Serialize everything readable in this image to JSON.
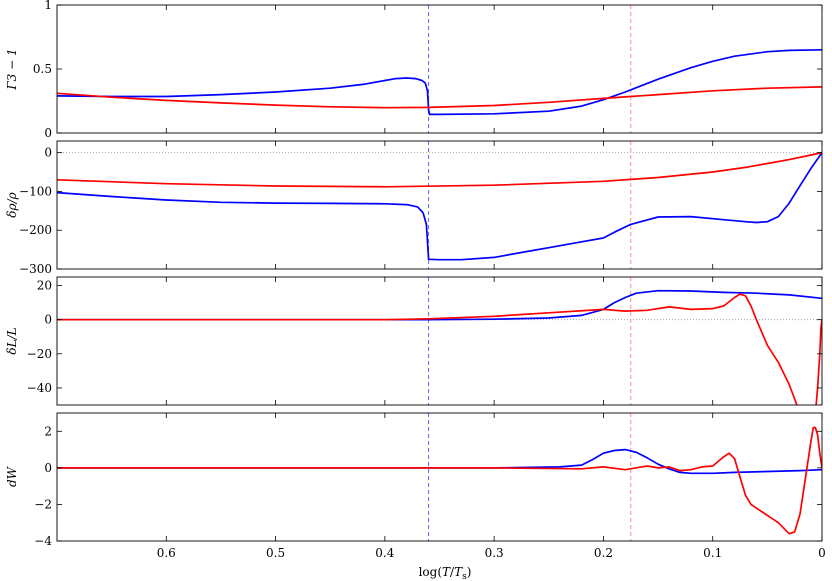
{
  "chart_data": {
    "type": "line",
    "xlabel": "log(T/T_s)",
    "xlim": [
      0.7,
      0.0
    ],
    "x_ticks": [
      0.6,
      0.5,
      0.4,
      0.3,
      0.2,
      0.1,
      0.0
    ],
    "x_tick_labels": [
      "0.6",
      "0.5",
      "0.4",
      "0.3",
      "0.2",
      "0.1",
      "0"
    ],
    "colors": {
      "blue": "#0000ff",
      "red": "#ff0000"
    },
    "vlines": [
      {
        "x": 0.36,
        "color": "#6666ff",
        "style": "dashed"
      },
      {
        "x": 0.175,
        "color": "#ff8888",
        "style": "dashed"
      }
    ],
    "panels": [
      {
        "ylabel": "Γ3 − 1",
        "ylim": [
          0,
          1
        ],
        "yticks": [
          0,
          0.5,
          1
        ],
        "ytick_labels": [
          "0",
          "0.5",
          "1"
        ],
        "zero_line": false,
        "series": [
          {
            "color": "blue",
            "x": [
              0.7,
              0.65,
              0.6,
              0.55,
              0.5,
              0.45,
              0.42,
              0.4,
              0.39,
              0.38,
              0.372,
              0.366,
              0.363,
              0.361,
              0.36,
              0.359,
              0.35,
              0.3,
              0.25,
              0.22,
              0.2,
              0.18,
              0.15,
              0.12,
              0.1,
              0.08,
              0.05,
              0.03,
              0.0
            ],
            "y": [
              0.29,
              0.285,
              0.285,
              0.3,
              0.32,
              0.35,
              0.38,
              0.41,
              0.425,
              0.43,
              0.425,
              0.41,
              0.39,
              0.33,
              0.18,
              0.145,
              0.145,
              0.15,
              0.17,
              0.21,
              0.26,
              0.32,
              0.42,
              0.51,
              0.56,
              0.6,
              0.635,
              0.645,
              0.65
            ]
          },
          {
            "color": "red",
            "x": [
              0.7,
              0.65,
              0.6,
              0.55,
              0.5,
              0.45,
              0.4,
              0.36,
              0.3,
              0.25,
              0.2,
              0.15,
              0.1,
              0.05,
              0.0
            ],
            "y": [
              0.31,
              0.28,
              0.255,
              0.235,
              0.218,
              0.205,
              0.198,
              0.2,
              0.215,
              0.24,
              0.27,
              0.3,
              0.33,
              0.35,
              0.36
            ]
          }
        ]
      },
      {
        "ylabel": "δρ/ρ",
        "ylim": [
          -300,
          30
        ],
        "yticks": [
          -300,
          -200,
          -100,
          0
        ],
        "ytick_labels": [
          "−300",
          "−200",
          "−100",
          "0"
        ],
        "zero_line": true,
        "series": [
          {
            "color": "blue",
            "x": [
              0.7,
              0.65,
              0.6,
              0.55,
              0.5,
              0.45,
              0.4,
              0.38,
              0.37,
              0.365,
              0.362,
              0.361,
              0.36,
              0.35,
              0.33,
              0.3,
              0.27,
              0.25,
              0.22,
              0.2,
              0.19,
              0.175,
              0.15,
              0.12,
              0.09,
              0.07,
              0.06,
              0.05,
              0.04,
              0.03,
              0.02,
              0.01,
              0.0
            ],
            "y": [
              -103,
              -113,
              -122,
              -128,
              -130,
              -131,
              -132,
              -134,
              -140,
              -155,
              -185,
              -230,
              -275,
              -276,
              -276,
              -270,
              -255,
              -245,
              -230,
              -220,
              -205,
              -185,
              -166,
              -165,
              -173,
              -178,
              -180,
              -178,
              -165,
              -130,
              -85,
              -40,
              0
            ]
          },
          {
            "color": "red",
            "x": [
              0.7,
              0.6,
              0.5,
              0.4,
              0.3,
              0.2,
              0.15,
              0.1,
              0.07,
              0.05,
              0.03,
              0.01,
              0.0
            ],
            "y": [
              -70,
              -80,
              -86,
              -88,
              -84,
              -74,
              -64,
              -50,
              -38,
              -28,
              -18,
              -6,
              0
            ]
          }
        ]
      },
      {
        "ylabel": "δL/L",
        "ylim": [
          -50,
          25
        ],
        "yticks": [
          -40,
          -20,
          0,
          20
        ],
        "ytick_labels": [
          "−40",
          "−20",
          "0",
          "20"
        ],
        "zero_line": true,
        "series": [
          {
            "color": "blue",
            "x": [
              0.7,
              0.5,
              0.36,
              0.3,
              0.25,
              0.22,
              0.2,
              0.19,
              0.18,
              0.17,
              0.15,
              0.12,
              0.09,
              0.06,
              0.03,
              0.0
            ],
            "y": [
              0,
              0,
              0,
              0.3,
              1,
              2.5,
              6,
              10,
              13,
              15.5,
              17,
              16.8,
              16,
              15.5,
              14.5,
              12.5
            ]
          },
          {
            "color": "red",
            "x": [
              0.7,
              0.5,
              0.4,
              0.36,
              0.3,
              0.25,
              0.2,
              0.18,
              0.16,
              0.14,
              0.12,
              0.1,
              0.09,
              0.08,
              0.075,
              0.07,
              0.065,
              0.06,
              0.05,
              0.04,
              0.03,
              0.02
            ],
            "y": [
              0,
              0,
              0,
              0.5,
              2,
              4,
              6,
              5,
              5.5,
              7.5,
              6,
              6.5,
              8,
              13,
              15,
              14,
              8,
              0,
              -15,
              -25,
              -38,
              -55
            ]
          },
          {
            "color": "red",
            "x": [
              0.006,
              0.004,
              0.002,
              0.001,
              0.0
            ],
            "y": [
              -55,
              -40,
              -20,
              -5,
              0
            ]
          }
        ]
      },
      {
        "ylabel": "dW",
        "ylim": [
          -4,
          3
        ],
        "yticks": [
          -4,
          -2,
          0,
          2
        ],
        "ytick_labels": [
          "−4",
          "−2",
          "0",
          "2"
        ],
        "zero_line": false,
        "series": [
          {
            "color": "blue",
            "x": [
              0.7,
              0.5,
              0.3,
              0.24,
              0.22,
              0.21,
              0.2,
              0.19,
              0.18,
              0.17,
              0.16,
              0.15,
              0.14,
              0.13,
              0.12,
              0.1,
              0.08,
              0.05,
              0.02,
              0.0
            ],
            "y": [
              0,
              0,
              0,
              0.05,
              0.15,
              0.45,
              0.8,
              0.95,
              1.0,
              0.85,
              0.55,
              0.2,
              -0.05,
              -0.25,
              -0.3,
              -0.3,
              -0.25,
              -0.2,
              -0.15,
              -0.1
            ]
          },
          {
            "color": "red",
            "x": [
              0.7,
              0.5,
              0.3,
              0.22,
              0.2,
              0.18,
              0.16,
              0.15,
              0.14,
              0.13,
              0.12,
              0.11,
              0.1,
              0.09,
              0.085,
              0.08,
              0.075,
              0.07,
              0.065,
              0.06,
              0.05,
              0.04,
              0.03,
              0.025,
              0.02,
              0.015,
              0.01,
              0.008,
              0.006,
              0.004,
              0.002,
              0.0
            ],
            "y": [
              0,
              0,
              0,
              -0.05,
              0.05,
              -0.1,
              0.1,
              0.0,
              0.05,
              -0.15,
              -0.1,
              0.05,
              0.1,
              0.6,
              0.8,
              0.5,
              -0.5,
              -1.5,
              -2.0,
              -2.2,
              -2.6,
              -3.0,
              -3.6,
              -3.5,
              -2.5,
              -0.5,
              1.5,
              2.2,
              2.2,
              1.8,
              0.8,
              0.0
            ]
          }
        ]
      }
    ]
  }
}
